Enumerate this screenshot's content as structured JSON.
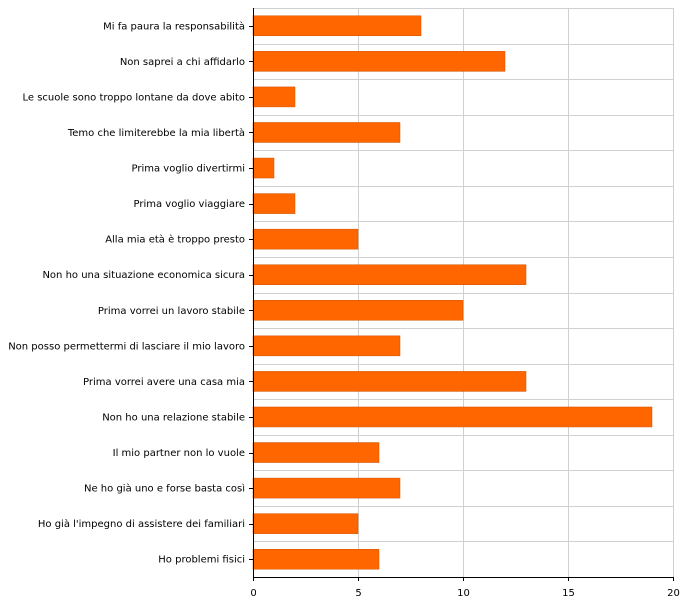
{
  "chart_data": {
    "type": "bar",
    "orientation": "horizontal",
    "categories": [
      "Mi fa paura la responsabilità",
      "Non saprei a chi affidarlo",
      "Le scuole sono troppo lontane da dove abito",
      "Temo che limiterebbe la mia libertà",
      "Prima voglio divertirmi",
      "Prima voglio viaggiare",
      "Alla mia età è troppo presto",
      "Non ho una situazione economica sicura",
      "Prima vorrei un lavoro stabile",
      "Non posso permettermi di lasciare il mio lavoro",
      "Prima vorrei avere una casa mia",
      "Non ho una relazione stabile",
      "Il mio partner non lo vuole",
      "Ne ho già uno e forse basta così",
      "Ho già l'impegno di assistere dei familiari",
      "Ho problemi fisici"
    ],
    "values": [
      8,
      12,
      2,
      7,
      1,
      2,
      5,
      13,
      10,
      7,
      13,
      19,
      6,
      7,
      5,
      6
    ],
    "xlim": [
      0,
      20
    ],
    "xticks": [
      0,
      5,
      10,
      15,
      20
    ],
    "title": "",
    "xlabel": "",
    "ylabel": "",
    "grid": true,
    "bar_color": "#ff6600",
    "bar_edge_color": "#cc5200",
    "grid_color": "#d0d0d0"
  }
}
